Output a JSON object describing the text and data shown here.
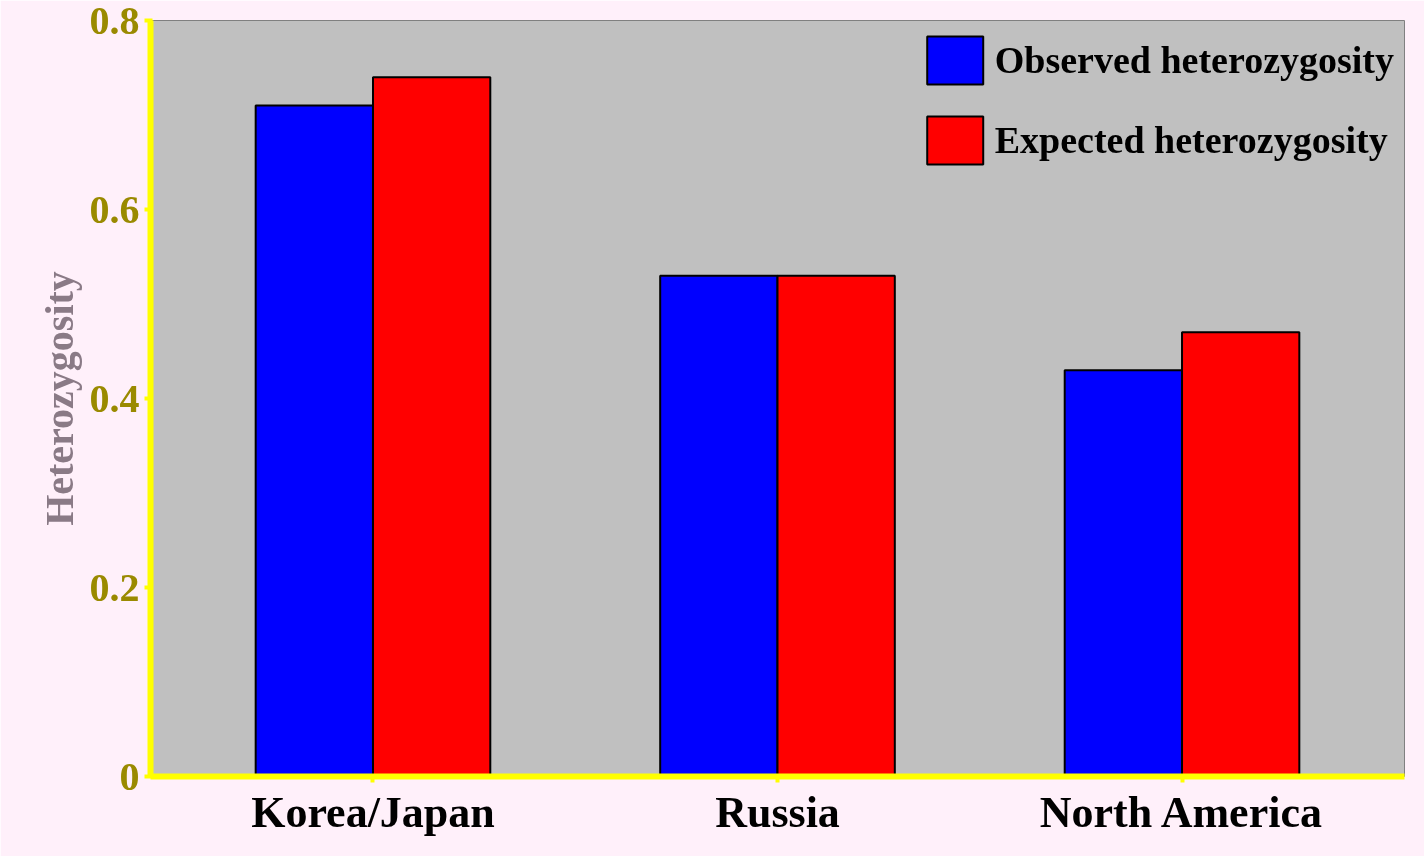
{
  "chart_data": {
    "type": "bar",
    "ylabel": "Heterozygosity",
    "categories": [
      "Korea/Japan",
      "Russia",
      "North America"
    ],
    "series": [
      {
        "name": "Observed heterozygosity",
        "color": "#0000ff",
        "values": [
          0.71,
          0.53,
          0.43
        ]
      },
      {
        "name": "Expected heterozygosity",
        "color": "#ff0000",
        "values": [
          0.74,
          0.53,
          0.47
        ]
      }
    ],
    "ylim": [
      0,
      0.8
    ],
    "yticks": [
      0,
      0.2,
      0.4,
      0.6,
      0.8
    ],
    "grid": false,
    "legend": "top right"
  }
}
